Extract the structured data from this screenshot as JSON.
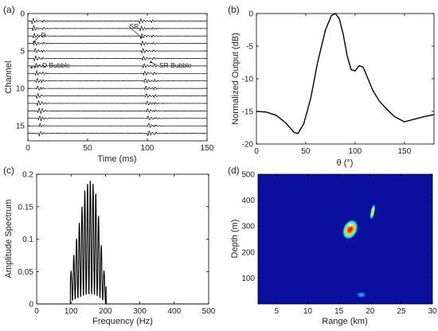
{
  "chart_data": [
    {
      "panel": "(a)",
      "type": "line",
      "xlabel": "Time (ms)",
      "ylabel": "Channel",
      "xlim": [
        0,
        150
      ],
      "ylim": [
        0,
        17
      ],
      "y_reversed": true,
      "xticks": [
        0,
        50,
        100,
        150
      ],
      "yticks": [
        0,
        5,
        10,
        15
      ],
      "channels": 16,
      "arrivals": [
        {
          "name": "D",
          "time_ch1": 4,
          "time_ch16": 10
        },
        {
          "name": "D Bubble",
          "time_ch1": 13,
          "time_ch16": 11
        },
        {
          "name": "SR",
          "time_ch1": 94,
          "time_ch16": 101
        },
        {
          "name": "SR Bubble",
          "time_ch1": 104,
          "time_ch16": 107
        }
      ],
      "annotations": [
        {
          "text": "D",
          "x": 11,
          "y": 3.2
        },
        {
          "text": "D Bubble",
          "x": 12,
          "y": 7.2
        },
        {
          "text": "SR",
          "x": 85,
          "y": 2
        },
        {
          "text": "SR Bubble",
          "x": 110,
          "y": 7.2
        }
      ]
    },
    {
      "panel": "(b)",
      "type": "line",
      "xlabel": "θ (°)",
      "ylabel": "Normalized Output (dB)",
      "xlim": [
        0,
        180
      ],
      "ylim": [
        -20,
        0
      ],
      "xticks": [
        0,
        50,
        100,
        150
      ],
      "yticks": [
        0,
        -5,
        -10,
        -15,
        -20
      ],
      "x": [
        0,
        10,
        20,
        30,
        38,
        42,
        48,
        55,
        62,
        70,
        76,
        80,
        84,
        88,
        92,
        96,
        100,
        104,
        108,
        112,
        118,
        125,
        133,
        140,
        150,
        160,
        170,
        180
      ],
      "y": [
        -15.0,
        -15.1,
        -15.6,
        -16.8,
        -18.2,
        -18.4,
        -16.9,
        -13.0,
        -7.5,
        -2.5,
        -0.3,
        0.0,
        -0.8,
        -3.2,
        -6.5,
        -8.6,
        -8.8,
        -8.0,
        -8.2,
        -9.6,
        -11.8,
        -13.5,
        -14.8,
        -15.8,
        -16.6,
        -16.2,
        -15.8,
        -15.5
      ]
    },
    {
      "panel": "(c)",
      "type": "line",
      "xlabel": "Frequency (Hz)",
      "ylabel": "Amplitude Spectrum",
      "xlim": [
        0,
        500
      ],
      "ylim": [
        0,
        0.2
      ],
      "xticks": [
        0,
        100,
        200,
        300,
        400,
        500
      ],
      "yticks": [
        0,
        0.05,
        0.1,
        0.15,
        0.2
      ],
      "peak_frequencies": [
        100,
        108,
        116,
        124,
        132,
        140,
        148,
        156,
        164,
        172,
        180,
        188,
        196
      ],
      "peak_values": [
        0.05,
        0.075,
        0.1,
        0.125,
        0.15,
        0.175,
        0.185,
        0.19,
        0.185,
        0.17,
        0.135,
        0.09,
        0.05
      ],
      "band": [
        98,
        202
      ]
    },
    {
      "panel": "(d)",
      "type": "heatmap",
      "xlabel": "Range (km)",
      "ylabel": "Depth (m)",
      "xlim": [
        2,
        30
      ],
      "ylim": [
        0,
        500
      ],
      "xticks": [
        5,
        10,
        15,
        20,
        25,
        30
      ],
      "yticks": [
        100,
        200,
        300,
        400,
        500
      ],
      "background_color": "#0a0f9e",
      "blobs": [
        {
          "range_km": 16.8,
          "depth_m": 287,
          "peak": "red"
        },
        {
          "range_km": 20.4,
          "depth_m": 355,
          "peak": "orange"
        },
        {
          "range_km": 18.6,
          "depth_m": 35,
          "peak": "light-blue"
        }
      ],
      "marker": {
        "symbol": "+",
        "range_km": 16.8,
        "depth_m": 303,
        "color": "#ffffff"
      }
    }
  ],
  "panel_labels": [
    "(a)",
    "(b)",
    "(c)",
    "(d)"
  ]
}
